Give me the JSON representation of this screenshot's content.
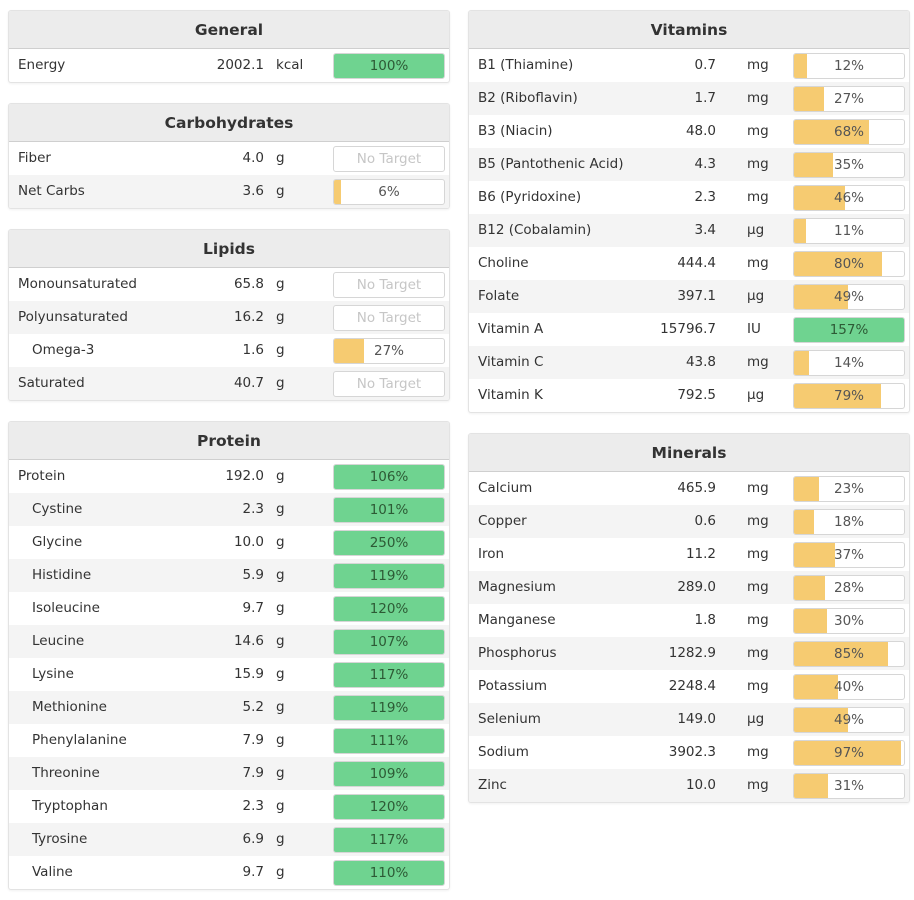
{
  "colors": {
    "green": "#6fd390",
    "yellow": "#f6cb71"
  },
  "panels": [
    {
      "id": "general",
      "side": "left",
      "title": "General",
      "rows": [
        {
          "name": "Energy",
          "amount": "2002.1",
          "unit": "kcal",
          "bar_label": "100%",
          "percent": 100,
          "has_target": true
        }
      ]
    },
    {
      "id": "carbohydrates",
      "side": "left",
      "title": "Carbohydrates",
      "rows": [
        {
          "name": "Fiber",
          "amount": "4.0",
          "unit": "g",
          "bar_label": "No Target",
          "percent": 0,
          "has_target": false
        },
        {
          "name": "Net Carbs",
          "amount": "3.6",
          "unit": "g",
          "bar_label": "6%",
          "percent": 6,
          "has_target": true
        }
      ]
    },
    {
      "id": "lipids",
      "side": "left",
      "title": "Lipids",
      "rows": [
        {
          "name": "Monounsaturated",
          "amount": "65.8",
          "unit": "g",
          "bar_label": "No Target",
          "percent": 0,
          "has_target": false
        },
        {
          "name": "Polyunsaturated",
          "amount": "16.2",
          "unit": "g",
          "bar_label": "No Target",
          "percent": 0,
          "has_target": false
        },
        {
          "name": "Omega-3",
          "amount": "1.6",
          "unit": "g",
          "bar_label": "27%",
          "percent": 27,
          "has_target": true,
          "sub": true
        },
        {
          "name": "Saturated",
          "amount": "40.7",
          "unit": "g",
          "bar_label": "No Target",
          "percent": 0,
          "has_target": false
        }
      ]
    },
    {
      "id": "protein",
      "side": "left",
      "title": "Protein",
      "rows": [
        {
          "name": "Protein",
          "amount": "192.0",
          "unit": "g",
          "bar_label": "106%",
          "percent": 106,
          "has_target": true
        },
        {
          "name": "Cystine",
          "amount": "2.3",
          "unit": "g",
          "bar_label": "101%",
          "percent": 101,
          "has_target": true,
          "sub": true
        },
        {
          "name": "Glycine",
          "amount": "10.0",
          "unit": "g",
          "bar_label": "250%",
          "percent": 250,
          "has_target": true,
          "sub": true
        },
        {
          "name": "Histidine",
          "amount": "5.9",
          "unit": "g",
          "bar_label": "119%",
          "percent": 119,
          "has_target": true,
          "sub": true
        },
        {
          "name": "Isoleucine",
          "amount": "9.7",
          "unit": "g",
          "bar_label": "120%",
          "percent": 120,
          "has_target": true,
          "sub": true
        },
        {
          "name": "Leucine",
          "amount": "14.6",
          "unit": "g",
          "bar_label": "107%",
          "percent": 107,
          "has_target": true,
          "sub": true
        },
        {
          "name": "Lysine",
          "amount": "15.9",
          "unit": "g",
          "bar_label": "117%",
          "percent": 117,
          "has_target": true,
          "sub": true
        },
        {
          "name": "Methionine",
          "amount": "5.2",
          "unit": "g",
          "bar_label": "119%",
          "percent": 119,
          "has_target": true,
          "sub": true
        },
        {
          "name": "Phenylalanine",
          "amount": "7.9",
          "unit": "g",
          "bar_label": "111%",
          "percent": 111,
          "has_target": true,
          "sub": true
        },
        {
          "name": "Threonine",
          "amount": "7.9",
          "unit": "g",
          "bar_label": "109%",
          "percent": 109,
          "has_target": true,
          "sub": true
        },
        {
          "name": "Tryptophan",
          "amount": "2.3",
          "unit": "g",
          "bar_label": "120%",
          "percent": 120,
          "has_target": true,
          "sub": true
        },
        {
          "name": "Tyrosine",
          "amount": "6.9",
          "unit": "g",
          "bar_label": "117%",
          "percent": 117,
          "has_target": true,
          "sub": true
        },
        {
          "name": "Valine",
          "amount": "9.7",
          "unit": "g",
          "bar_label": "110%",
          "percent": 110,
          "has_target": true,
          "sub": true
        }
      ]
    },
    {
      "id": "vitamins",
      "side": "right",
      "title": "Vitamins",
      "rows": [
        {
          "name": "B1 (Thiamine)",
          "amount": "0.7",
          "unit": "mg",
          "bar_label": "12%",
          "percent": 12,
          "has_target": true
        },
        {
          "name": "B2 (Riboflavin)",
          "amount": "1.7",
          "unit": "mg",
          "bar_label": "27%",
          "percent": 27,
          "has_target": true
        },
        {
          "name": "B3 (Niacin)",
          "amount": "48.0",
          "unit": "mg",
          "bar_label": "68%",
          "percent": 68,
          "has_target": true
        },
        {
          "name": "B5 (Pantothenic Acid)",
          "amount": "4.3",
          "unit": "mg",
          "bar_label": "35%",
          "percent": 35,
          "has_target": true
        },
        {
          "name": "B6 (Pyridoxine)",
          "amount": "2.3",
          "unit": "mg",
          "bar_label": "46%",
          "percent": 46,
          "has_target": true
        },
        {
          "name": "B12 (Cobalamin)",
          "amount": "3.4",
          "unit": "µg",
          "bar_label": "11%",
          "percent": 11,
          "has_target": true
        },
        {
          "name": "Choline",
          "amount": "444.4",
          "unit": "mg",
          "bar_label": "80%",
          "percent": 80,
          "has_target": true
        },
        {
          "name": "Folate",
          "amount": "397.1",
          "unit": "µg",
          "bar_label": "49%",
          "percent": 49,
          "has_target": true
        },
        {
          "name": "Vitamin A",
          "amount": "15796.7",
          "unit": "IU",
          "bar_label": "157%",
          "percent": 157,
          "has_target": true
        },
        {
          "name": "Vitamin C",
          "amount": "43.8",
          "unit": "mg",
          "bar_label": "14%",
          "percent": 14,
          "has_target": true
        },
        {
          "name": "Vitamin K",
          "amount": "792.5",
          "unit": "µg",
          "bar_label": "79%",
          "percent": 79,
          "has_target": true
        }
      ]
    },
    {
      "id": "minerals",
      "side": "right",
      "title": "Minerals",
      "rows": [
        {
          "name": "Calcium",
          "amount": "465.9",
          "unit": "mg",
          "bar_label": "23%",
          "percent": 23,
          "has_target": true
        },
        {
          "name": "Copper",
          "amount": "0.6",
          "unit": "mg",
          "bar_label": "18%",
          "percent": 18,
          "has_target": true
        },
        {
          "name": "Iron",
          "amount": "11.2",
          "unit": "mg",
          "bar_label": "37%",
          "percent": 37,
          "has_target": true
        },
        {
          "name": "Magnesium",
          "amount": "289.0",
          "unit": "mg",
          "bar_label": "28%",
          "percent": 28,
          "has_target": true
        },
        {
          "name": "Manganese",
          "amount": "1.8",
          "unit": "mg",
          "bar_label": "30%",
          "percent": 30,
          "has_target": true
        },
        {
          "name": "Phosphorus",
          "amount": "1282.9",
          "unit": "mg",
          "bar_label": "85%",
          "percent": 85,
          "has_target": true
        },
        {
          "name": "Potassium",
          "amount": "2248.4",
          "unit": "mg",
          "bar_label": "40%",
          "percent": 40,
          "has_target": true
        },
        {
          "name": "Selenium",
          "amount": "149.0",
          "unit": "µg",
          "bar_label": "49%",
          "percent": 49,
          "has_target": true
        },
        {
          "name": "Sodium",
          "amount": "3902.3",
          "unit": "mg",
          "bar_label": "97%",
          "percent": 97,
          "has_target": true
        },
        {
          "name": "Zinc",
          "amount": "10.0",
          "unit": "mg",
          "bar_label": "31%",
          "percent": 31,
          "has_target": true
        }
      ]
    }
  ]
}
